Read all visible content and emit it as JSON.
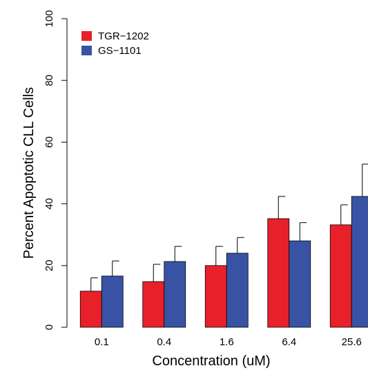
{
  "chart_data": {
    "type": "bar",
    "x_label": "Concentration (uM)",
    "y_label": "Percent Apoptotic CLL Cells",
    "categories": [
      "0.1",
      "0.4",
      "1.6",
      "6.4",
      "25.6"
    ],
    "series": [
      {
        "name": "TGR−1202",
        "color": "#e8202a",
        "values": [
          11.7,
          14.8,
          20,
          35.2,
          33.2
        ],
        "errors": [
          4.3,
          5.6,
          6.2,
          7.2,
          6.5
        ]
      },
      {
        "name": "GS−1101",
        "color": "#3953a4",
        "values": [
          16.6,
          21.3,
          24,
          28,
          42.4
        ],
        "errors": [
          4.9,
          4.9,
          5.1,
          5.9,
          10.5
        ]
      }
    ],
    "ylim": [
      0,
      100
    ],
    "yticks": [
      0,
      20,
      40,
      60,
      80,
      100
    ],
    "legend": "top-left"
  }
}
